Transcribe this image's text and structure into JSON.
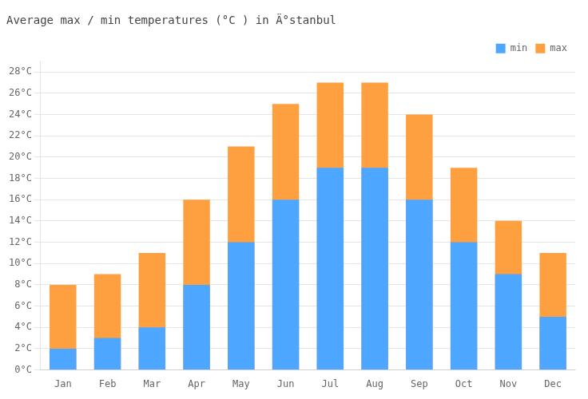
{
  "chart_data": {
    "type": "bar",
    "title": "Average max / min temperatures (°C ) in Ä°stanbul",
    "categories": [
      "Jan",
      "Feb",
      "Mar",
      "Apr",
      "May",
      "Jun",
      "Jul",
      "Aug",
      "Sep",
      "Oct",
      "Nov",
      "Dec"
    ],
    "series": [
      {
        "name": "min",
        "color": "#4da6ff",
        "values": [
          2,
          3,
          4,
          8,
          12,
          16,
          19,
          19,
          16,
          12,
          9,
          5
        ]
      },
      {
        "name": "max",
        "color": "#ffa040",
        "values": [
          8,
          9,
          11,
          16,
          21,
          25,
          27,
          27,
          24,
          19,
          14,
          11
        ]
      }
    ],
    "ylim": [
      0,
      29
    ],
    "yticks": [
      {
        "value": 0,
        "label": "0°C"
      },
      {
        "value": 2,
        "label": "2°C"
      },
      {
        "value": 4,
        "label": "4°C"
      },
      {
        "value": 6,
        "label": "6°C"
      },
      {
        "value": 8,
        "label": "8°C"
      },
      {
        "value": 10,
        "label": "10°C"
      },
      {
        "value": 12,
        "label": "12°C"
      },
      {
        "value": 14,
        "label": "14°C"
      },
      {
        "value": 16,
        "label": "16°C"
      },
      {
        "value": 18,
        "label": "18°C"
      },
      {
        "value": 20,
        "label": "20°C"
      },
      {
        "value": 22,
        "label": "22°C"
      },
      {
        "value": 24,
        "label": "24°C"
      },
      {
        "value": 26,
        "label": "26°C"
      },
      {
        "value": 28,
        "label": "28°C"
      }
    ],
    "grid": true,
    "legend": "upper right"
  }
}
